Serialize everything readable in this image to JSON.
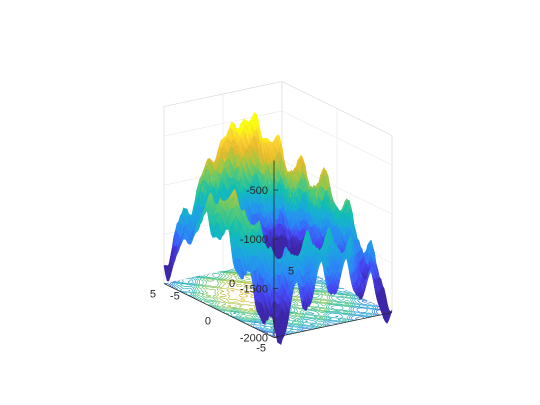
{
  "chart_data": {
    "type": "surface3d",
    "title": "",
    "xlabel": "",
    "ylabel": "",
    "zlabel": "",
    "colormap": "parula",
    "colormap_stops": [
      "#3e26a8",
      "#4746f5",
      "#2c87f7",
      "#1ca8de",
      "#11beb4",
      "#4ac881",
      "#a2c742",
      "#e7ba2e",
      "#fcd232",
      "#f9fb14"
    ],
    "contour_colormap_stops": [
      "#2a3fd6",
      "#1fa0db",
      "#2fbf8a",
      "#9ec742",
      "#f2b52b"
    ],
    "contour_projection": true,
    "grid": true,
    "x_range": [
      -5,
      5
    ],
    "y_range": [
      -5,
      5
    ],
    "z_range": [
      -2000,
      -200
    ],
    "x_ticks": [
      -5,
      0,
      5
    ],
    "x_tick_labels": [
      "-5",
      "0",
      "5"
    ],
    "y_ticks": [
      -5,
      0,
      5
    ],
    "y_tick_labels": [
      "-5",
      "0",
      "5"
    ],
    "z_ticks": [
      -2000,
      -1500,
      -1000,
      -500
    ],
    "z_tick_labels": [
      "-2000",
      "-1500",
      "-1000",
      "-500"
    ],
    "surface_features": {
      "broad_peak_z": -450,
      "oscillation": "dense ripples",
      "minimum_z": -1700
    }
  }
}
